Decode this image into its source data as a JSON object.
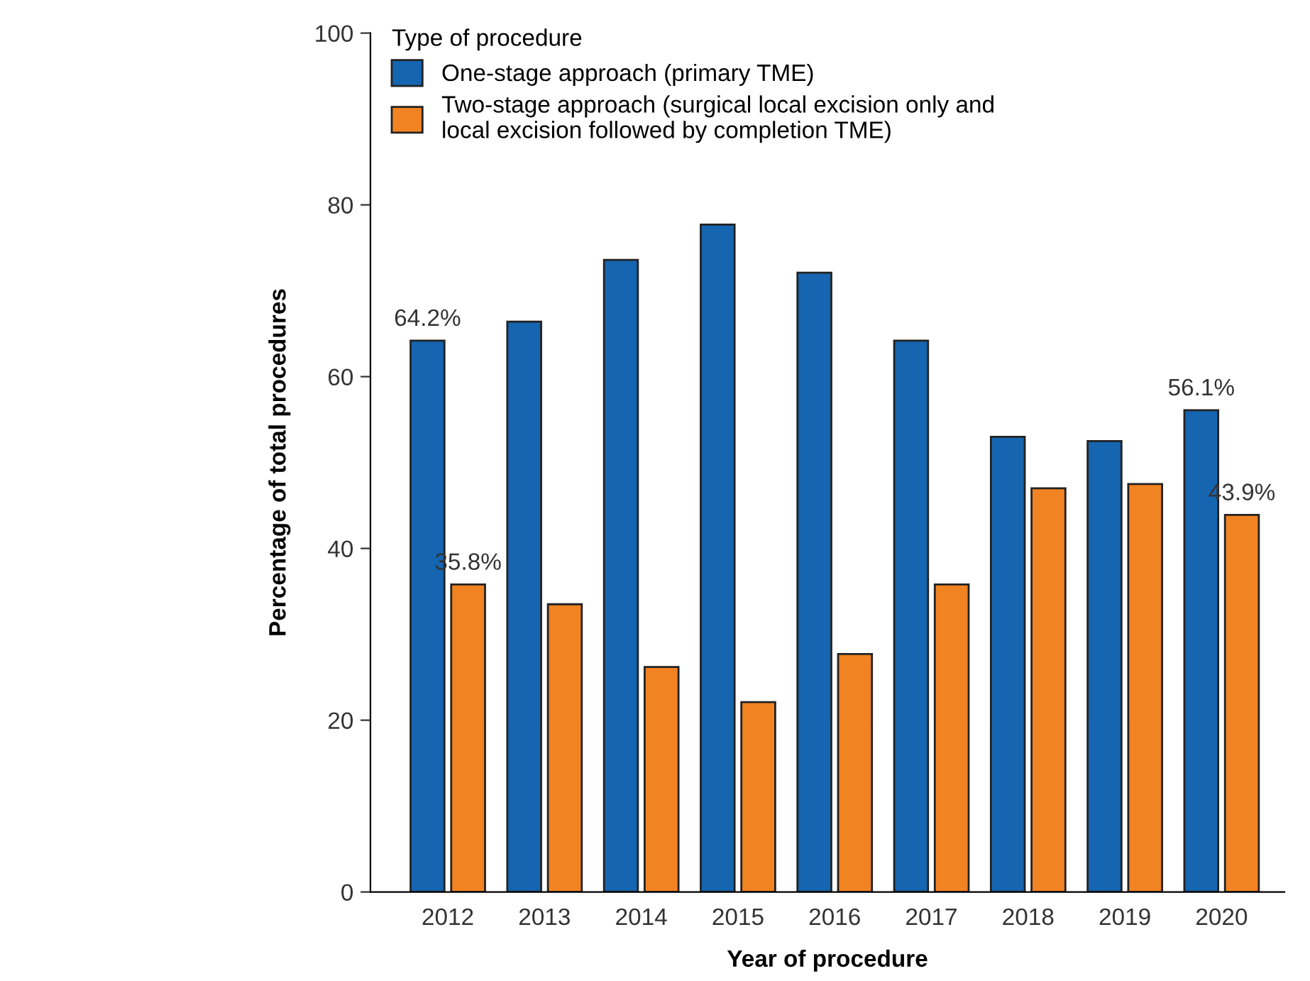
{
  "chart_data": {
    "type": "bar",
    "xlabel": "Year of procedure",
    "ylabel": "Percentage of total procedures",
    "legend_title": "Type of procedure",
    "legend": "top left",
    "grid": false,
    "categories": [
      "2012",
      "2013",
      "2014",
      "2015",
      "2016",
      "2017",
      "2018",
      "2019",
      "2020"
    ],
    "ylim": [
      0,
      100
    ],
    "yticks": [
      0,
      20,
      40,
      60,
      80,
      100
    ],
    "series": [
      {
        "name": "One-stage approach (primary TME)",
        "color": "#1565b0",
        "values": [
          64.2,
          66.4,
          73.6,
          77.7,
          72.1,
          64.2,
          53.0,
          52.5,
          56.1
        ],
        "value_labels": [
          "64.2%",
          null,
          null,
          null,
          null,
          null,
          null,
          null,
          "56.1%"
        ]
      },
      {
        "name": "Two-stage approach (surgical local excision only and\nlocal excision followed by completion TME)",
        "color": "#f28322",
        "values": [
          35.8,
          33.5,
          26.2,
          22.1,
          27.7,
          35.8,
          47.0,
          47.5,
          43.9
        ],
        "value_labels": [
          "35.8%",
          null,
          null,
          null,
          null,
          null,
          null,
          null,
          "43.9%"
        ]
      }
    ]
  }
}
